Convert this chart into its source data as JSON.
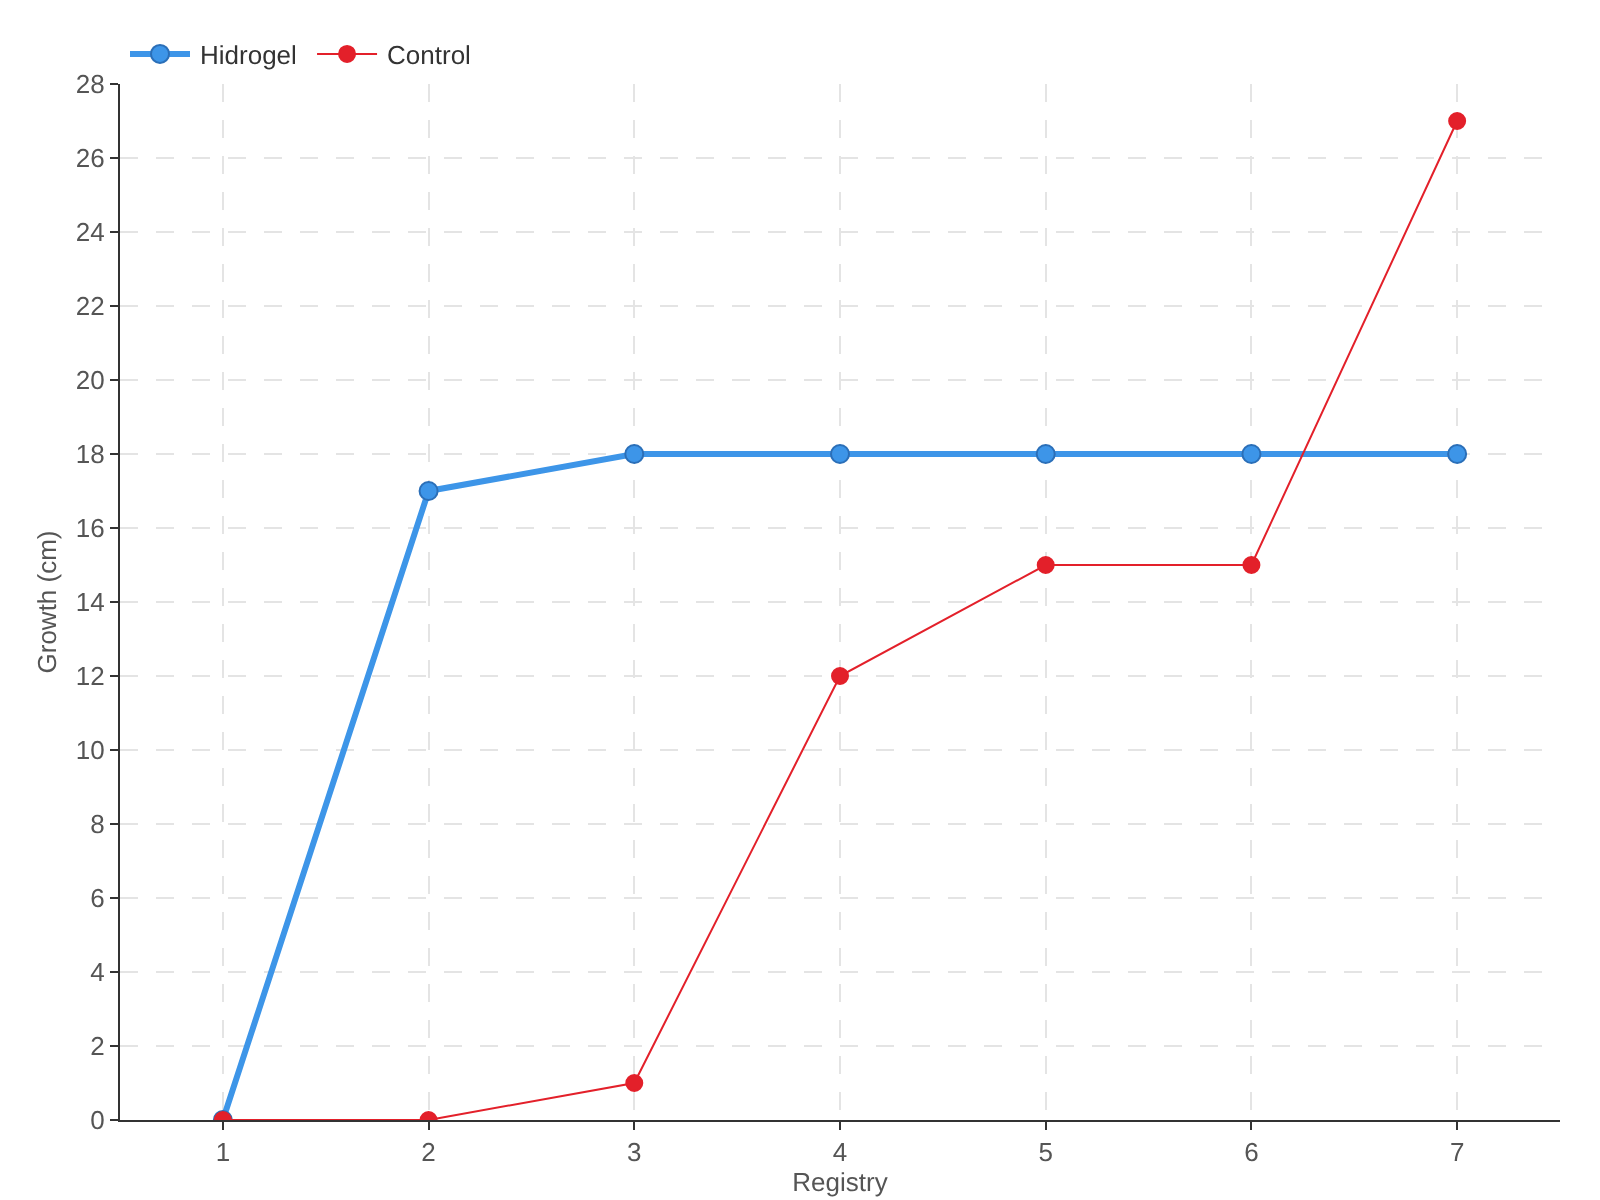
{
  "chart_data": {
    "type": "line",
    "xlabel": "Registry",
    "ylabel": "Growth (cm)",
    "x": [
      1,
      2,
      3,
      4,
      5,
      6,
      7
    ],
    "series": [
      {
        "name": "Hidrogel",
        "color": "#3d95e8",
        "values": [
          0,
          17,
          18,
          18,
          18,
          18,
          18
        ]
      },
      {
        "name": "Control",
        "color": "#e3202a",
        "values": [
          0,
          0,
          1,
          12,
          15,
          15,
          27
        ]
      }
    ],
    "xlim": [
      0.5,
      7.5
    ],
    "xticks": [
      1,
      2,
      3,
      4,
      5,
      6,
      7
    ],
    "ylim": [
      0,
      28
    ],
    "yticks": [
      0,
      2,
      4,
      6,
      8,
      10,
      12,
      14,
      16,
      18,
      20,
      22,
      24,
      26,
      28
    ],
    "grid": true,
    "legend": "top left",
    "marker": "circle",
    "line_style": "solid"
  }
}
